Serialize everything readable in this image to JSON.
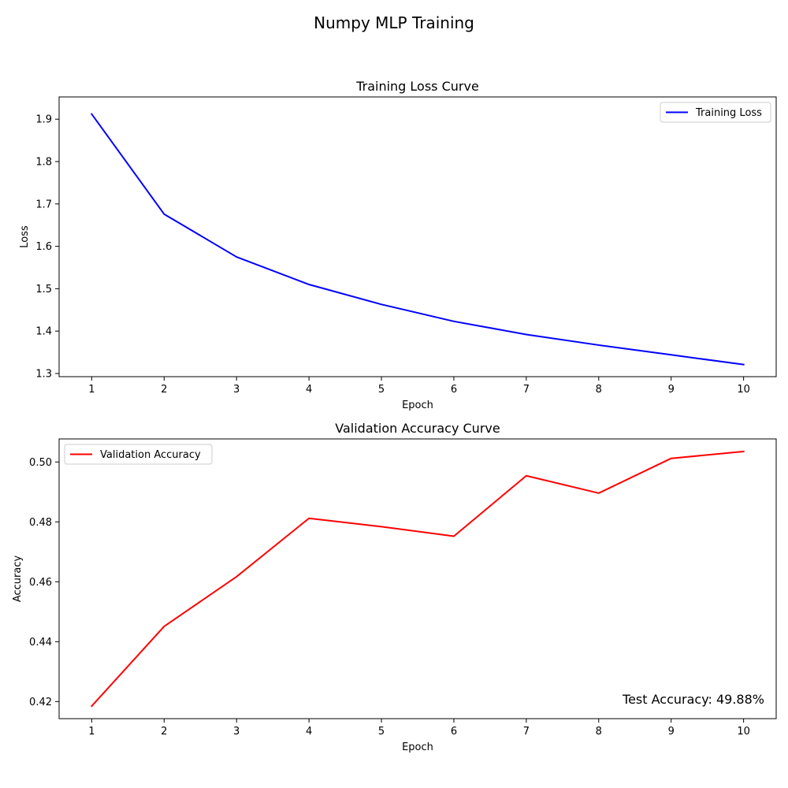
{
  "suptitle": "Numpy MLP Training",
  "chart_data": [
    {
      "type": "line",
      "title": "Training Loss Curve",
      "xlabel": "Epoch",
      "ylabel": "Loss",
      "x": [
        1,
        2,
        3,
        4,
        5,
        6,
        7,
        8,
        9,
        10
      ],
      "xticks": [
        1,
        2,
        3,
        4,
        5,
        6,
        7,
        8,
        9,
        10
      ],
      "xlim": [
        0.55,
        10.45
      ],
      "yticks": [
        1.3,
        1.4,
        1.5,
        1.6,
        1.7,
        1.8,
        1.9
      ],
      "ytick_labels": [
        "1.3",
        "1.4",
        "1.5",
        "1.6",
        "1.7",
        "1.8",
        "1.9"
      ],
      "ylim": [
        1.2925,
        1.9525
      ],
      "grid": false,
      "legend_position": "upper right",
      "series": [
        {
          "name": "Training Loss",
          "color": "#0000ff",
          "values": [
            1.912,
            1.676,
            1.575,
            1.51,
            1.463,
            1.423,
            1.392,
            1.367,
            1.344,
            1.321
          ]
        }
      ]
    },
    {
      "type": "line",
      "title": "Validation Accuracy Curve",
      "xlabel": "Epoch",
      "ylabel": "Accuracy",
      "x": [
        1,
        2,
        3,
        4,
        5,
        6,
        7,
        8,
        9,
        10
      ],
      "xticks": [
        1,
        2,
        3,
        4,
        5,
        6,
        7,
        8,
        9,
        10
      ],
      "xlim": [
        0.55,
        10.45
      ],
      "yticks": [
        0.42,
        0.44,
        0.46,
        0.48,
        0.5
      ],
      "ytick_labels": [
        "0.42",
        "0.44",
        "0.46",
        "0.48",
        "0.50"
      ],
      "ylim": [
        0.4143,
        0.5077
      ],
      "grid": false,
      "legend_position": "upper left",
      "annotation": "Test Accuracy: 49.88%",
      "annotation_position": "lower right",
      "series": [
        {
          "name": "Validation Accuracy",
          "color": "#ff0000",
          "values": [
            0.4185,
            0.4451,
            0.4617,
            0.4812,
            0.4784,
            0.4752,
            0.4954,
            0.4896,
            0.5012,
            0.5035
          ]
        }
      ]
    }
  ]
}
